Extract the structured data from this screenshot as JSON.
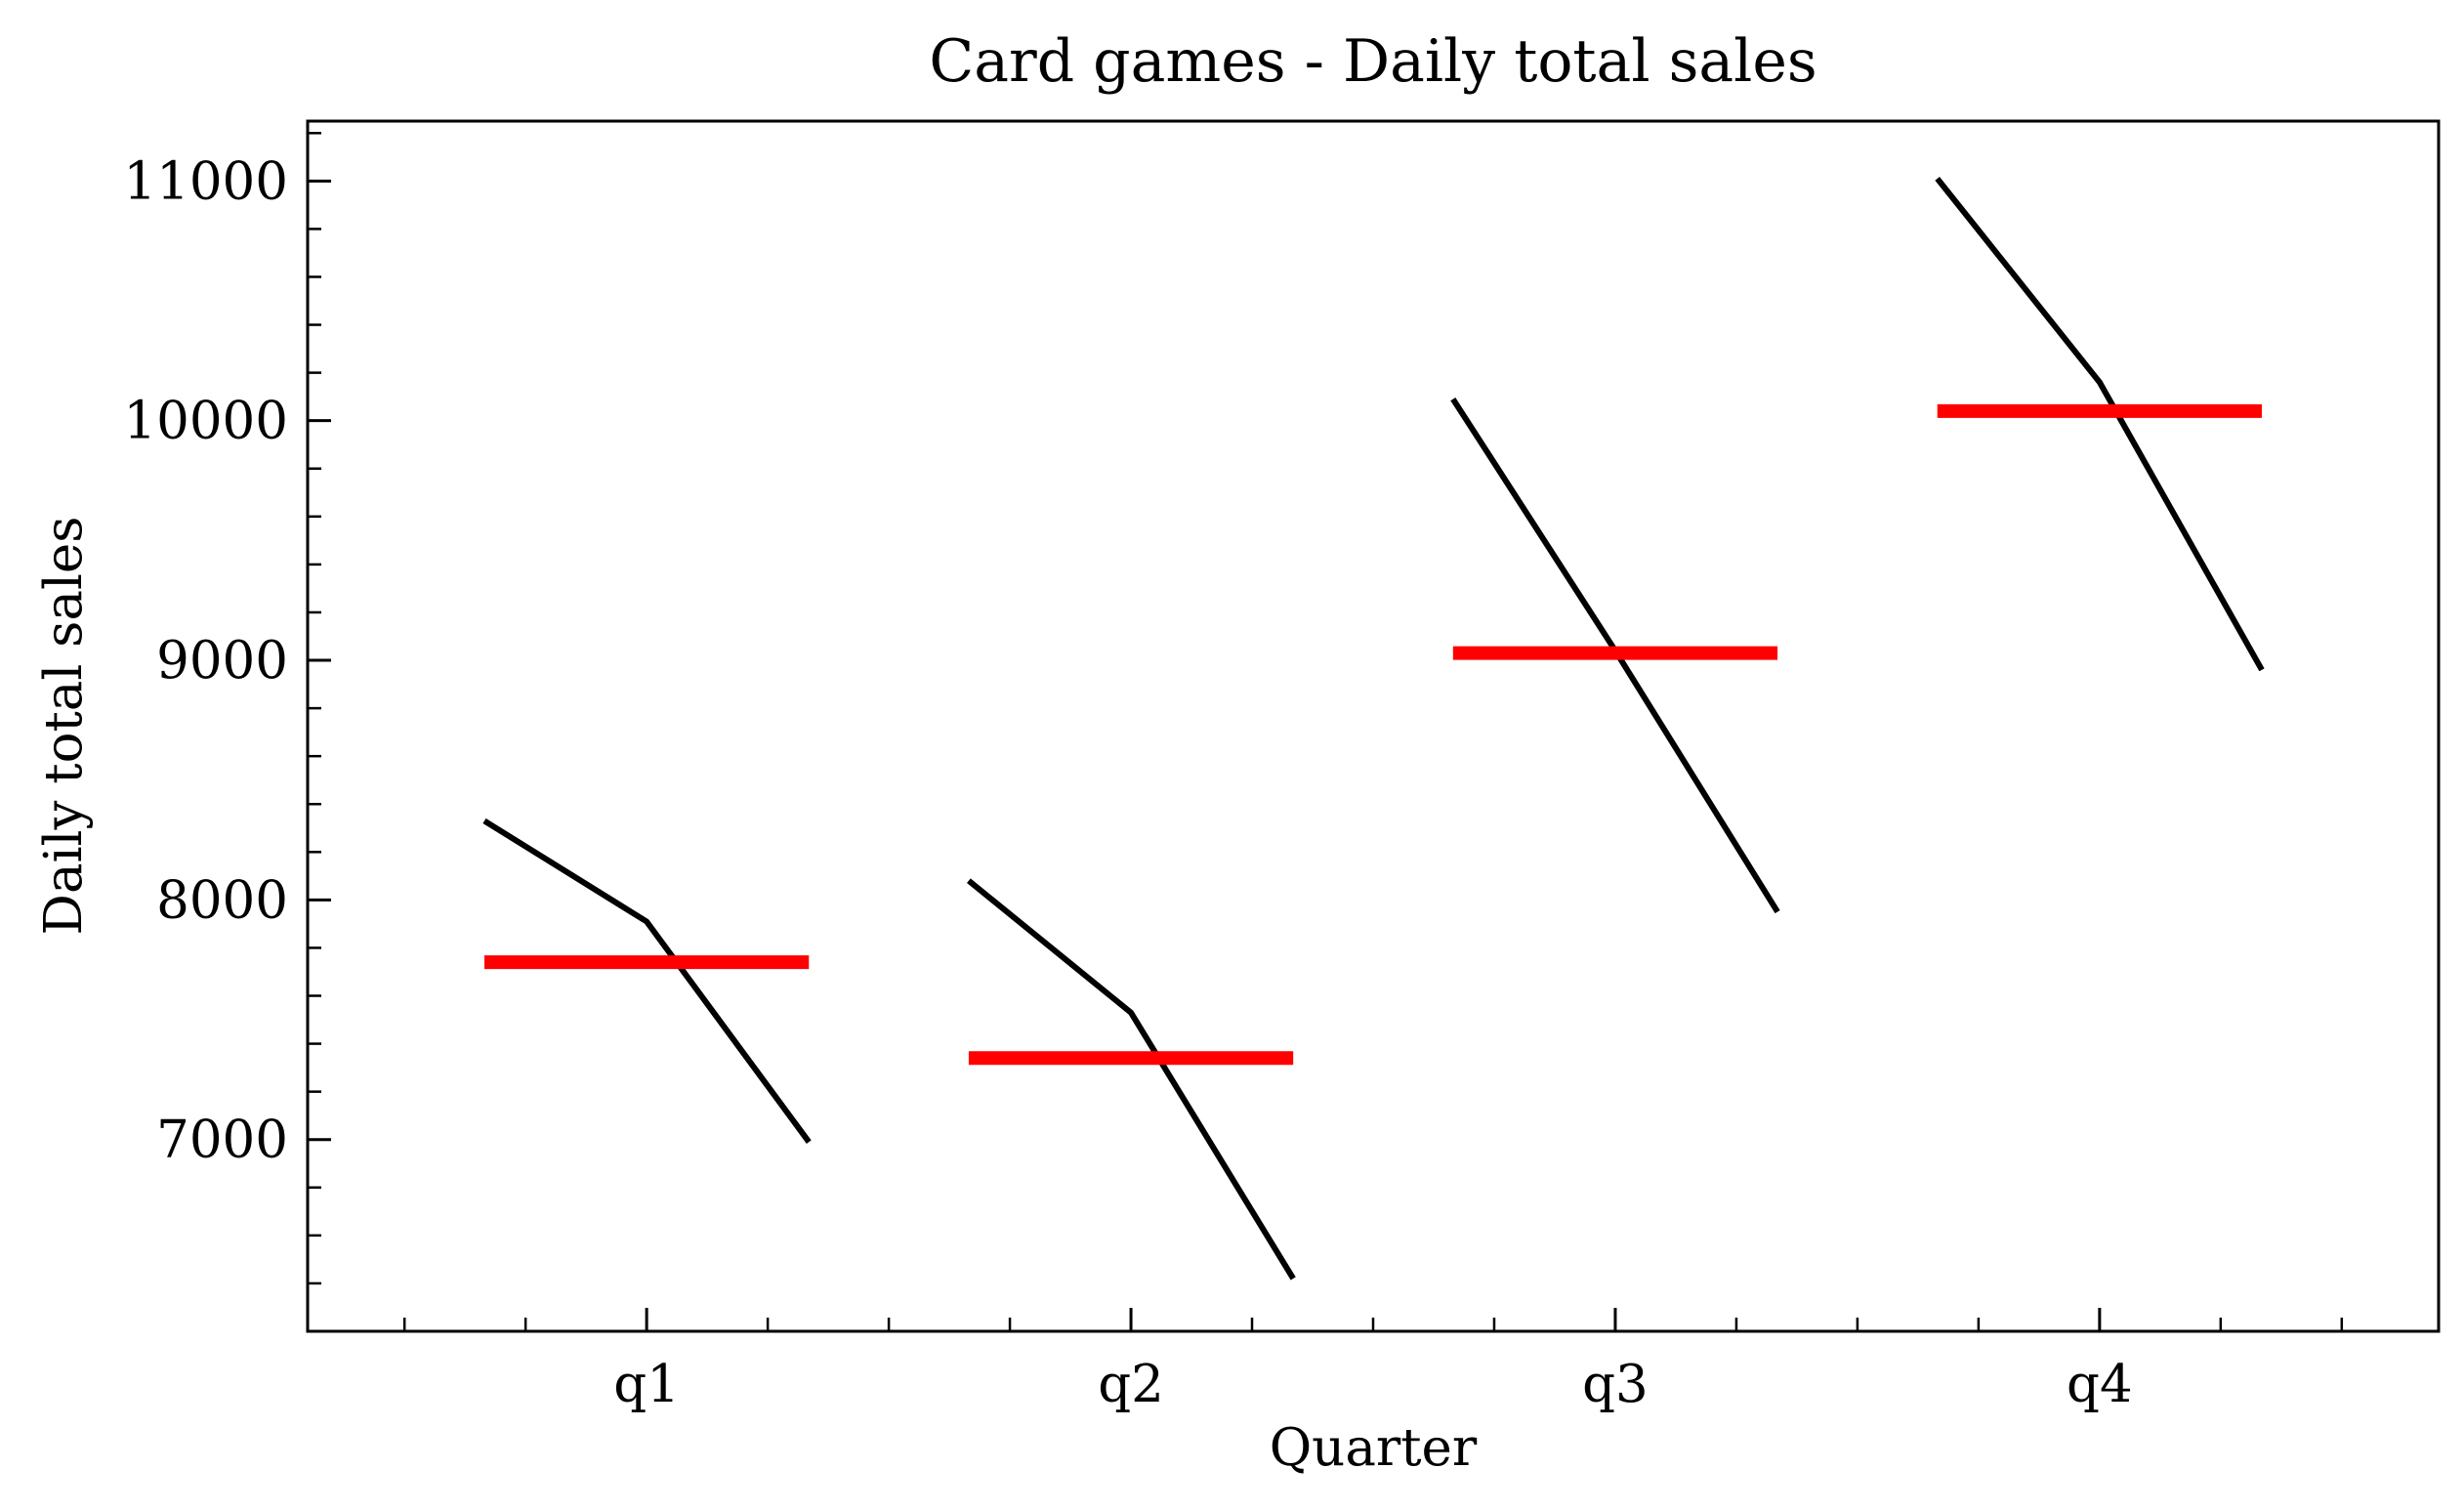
{
  "chart_data": {
    "type": "line",
    "title": "Card games - Daily total sales",
    "xlabel": "Quarter",
    "ylabel": "Daily total sales",
    "categories": [
      "q1",
      "q2",
      "q3",
      "q4"
    ],
    "ylim": [
      6200,
      11250
    ],
    "y_ticks": [
      7000,
      8000,
      9000,
      10000,
      11000
    ],
    "grid": false,
    "groups": [
      {
        "category": "q1",
        "values": [
          8330,
          7910,
          6990
        ],
        "mean": 7740
      },
      {
        "category": "q2",
        "values": [
          8080,
          7530,
          6420
        ],
        "mean": 7340
      },
      {
        "category": "q3",
        "values": [
          10090,
          9040,
          7950
        ],
        "mean": 9030
      },
      {
        "category": "q4",
        "values": [
          11010,
          10160,
          8960
        ],
        "mean": 10040
      }
    ],
    "colors": {
      "line": "#000000",
      "mean": "#ff0000",
      "axes": "#000000"
    }
  }
}
